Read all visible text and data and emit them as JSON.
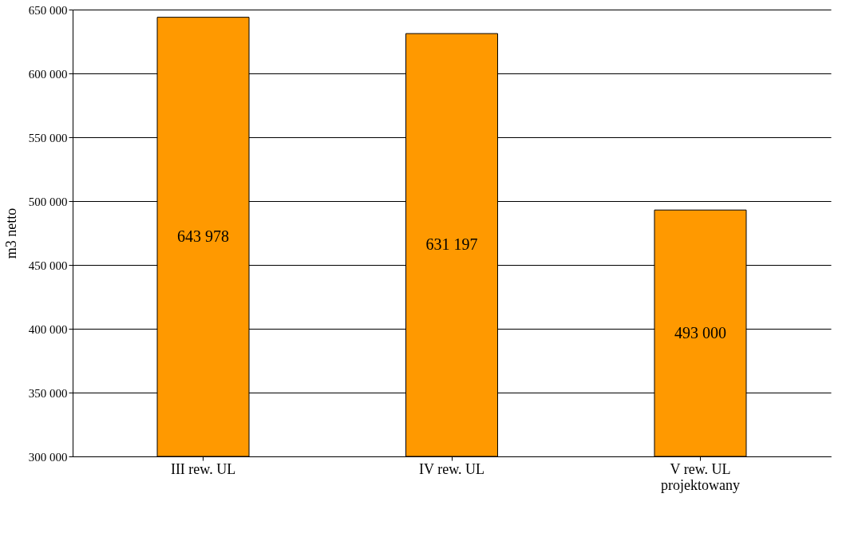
{
  "chart_data": {
    "type": "bar",
    "ylabel": "m3 netto",
    "categories": [
      "III rew. UL",
      "IV rew. UL",
      "V rew. UL\nprojektowany"
    ],
    "values": [
      643978,
      631197,
      493000
    ],
    "value_labels": [
      "643 978",
      "631 197",
      "493 000"
    ],
    "color": "#ff9900",
    "ylim": [
      300000,
      650000
    ],
    "yticks": [
      {
        "value": 300000,
        "label": "300 000"
      },
      {
        "value": 350000,
        "label": "350 000"
      },
      {
        "value": 400000,
        "label": "400 000"
      },
      {
        "value": 450000,
        "label": "450 000"
      },
      {
        "value": 500000,
        "label": "500 000"
      },
      {
        "value": 550000,
        "label": "550 000"
      },
      {
        "value": 600000,
        "label": "600 000"
      },
      {
        "value": 650000,
        "label": "650 000"
      }
    ],
    "grid": "y"
  }
}
